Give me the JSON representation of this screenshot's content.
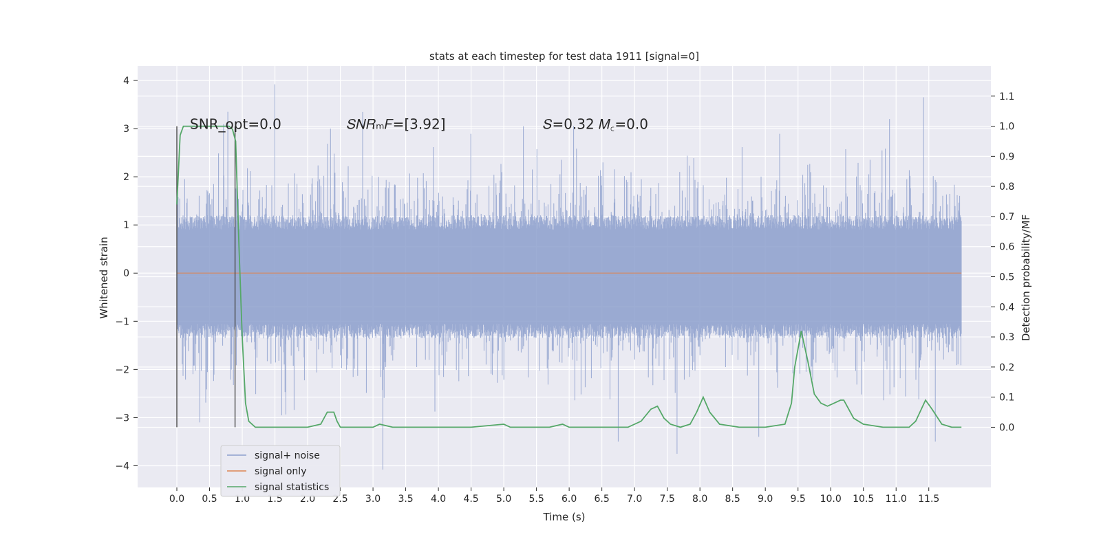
{
  "chart_data": {
    "type": "line",
    "title": "stats at each timestep for test data 1911 [signal=0]",
    "xlabel": "Time (s)",
    "ylabel_left": "Whitened strain",
    "ylabel_right": "Detection probability/MF",
    "xlim": [
      -0.6,
      12.45
    ],
    "ylim_left": [
      -4.45,
      4.3
    ],
    "ylim_right": [
      -0.2,
      1.2
    ],
    "grid": true,
    "legend_position": "lower-left",
    "x_ticks": [
      "0.0",
      "0.5",
      "1.0",
      "1.5",
      "2.0",
      "2.5",
      "3.0",
      "3.5",
      "4.0",
      "4.5",
      "5.0",
      "5.5",
      "6.0",
      "6.5",
      "7.0",
      "7.5",
      "8.0",
      "8.5",
      "9.0",
      "9.5",
      "10.0",
      "10.5",
      "11.0",
      "11.5"
    ],
    "x_tick_values": [
      0,
      0.5,
      1,
      1.5,
      2,
      2.5,
      3,
      3.5,
      4,
      4.5,
      5,
      5.5,
      6,
      6.5,
      7,
      7.5,
      8,
      8.5,
      9,
      9.5,
      10,
      10.5,
      11,
      11.5
    ],
    "y_left_ticks": [
      "−4",
      "−3",
      "−2",
      "−1",
      "0",
      "1",
      "2",
      "3",
      "4"
    ],
    "y_left_tick_values": [
      -4,
      -3,
      -2,
      -1,
      0,
      1,
      2,
      3,
      4
    ],
    "y_right_ticks": [
      "0.0",
      "0.1",
      "0.2",
      "0.3",
      "0.4",
      "0.5",
      "0.6",
      "0.7",
      "0.8",
      "0.9",
      "1.0",
      "1.1"
    ],
    "y_right_tick_values": [
      0,
      0.1,
      0.2,
      0.3,
      0.4,
      0.5,
      0.6,
      0.7,
      0.8,
      0.9,
      1.0,
      1.1
    ],
    "annotations": [
      {
        "name": "snr-opt",
        "text": "SNR_opt=0.0",
        "x": 0.2,
        "y_right": 1.0
      },
      {
        "name": "snr-mf",
        "text": "𝑆𝑁𝑅ₘ𝐹=[3.92]",
        "x": 2.6,
        "y_right": 1.0
      },
      {
        "name": "s-mc",
        "text": "𝑆=0.32   𝑀꜀=0.0",
        "x": 5.6,
        "y_right": 1.0
      }
    ],
    "vlines": [
      {
        "x": 0.0,
        "y_range": [
          -3.2,
          3.05
        ]
      },
      {
        "x": 0.89,
        "y_range": [
          -3.2,
          3.05
        ]
      }
    ],
    "series": [
      {
        "name": "signal+ noise",
        "color": "#8c9fcd",
        "axis": "left",
        "kind": "noise",
        "x_range": [
          0,
          12.0
        ],
        "typical_range": [
          -1.35,
          1.2
        ],
        "extremes": [
          {
            "x": 1.5,
            "y": 3.92
          },
          {
            "x": 3.15,
            "y": -4.08
          },
          {
            "x": 11.42,
            "y": 3.65
          },
          {
            "x": 0.78,
            "y": 3.35
          },
          {
            "x": 10.9,
            "y": 3.2
          },
          {
            "x": 6.75,
            "y": -3.5
          },
          {
            "x": 11.6,
            "y": -3.5
          },
          {
            "x": 7.65,
            "y": -3.75
          },
          {
            "x": 2.35,
            "y": 3.0
          },
          {
            "x": 0.35,
            "y": -3.1
          },
          {
            "x": 5.3,
            "y": 3.05
          },
          {
            "x": 8.9,
            "y": -3.4
          }
        ]
      },
      {
        "name": "signal only",
        "color": "#dd8452",
        "axis": "left",
        "x": [
          0,
          12.0
        ],
        "y": [
          0,
          0
        ]
      },
      {
        "name": "signal statistics",
        "color": "#55a868",
        "axis": "right",
        "x": [
          0,
          0.05,
          0.1,
          0.15,
          0.2,
          0.3,
          0.5,
          0.7,
          0.8,
          0.85,
          0.9,
          0.95,
          1.0,
          1.05,
          1.1,
          1.2,
          1.5,
          2.0,
          2.2,
          2.3,
          2.4,
          2.45,
          2.5,
          2.6,
          2.8,
          3.0,
          3.1,
          3.3,
          3.6,
          4.0,
          4.5,
          5.0,
          5.1,
          5.3,
          5.7,
          5.9,
          6.0,
          6.1,
          6.5,
          6.9,
          7.1,
          7.25,
          7.35,
          7.45,
          7.55,
          7.7,
          7.85,
          7.95,
          8.05,
          8.15,
          8.3,
          8.6,
          9.0,
          9.3,
          9.4,
          9.45,
          9.55,
          9.65,
          9.75,
          9.85,
          9.95,
          10.05,
          10.15,
          10.2,
          10.25,
          10.35,
          10.5,
          10.8,
          11.0,
          11.2,
          11.3,
          11.45,
          11.55,
          11.7,
          11.85,
          12.0
        ],
        "y": [
          0.74,
          0.97,
          1.0,
          1.0,
          1.0,
          1.0,
          1.0,
          1.0,
          1.0,
          0.99,
          0.95,
          0.6,
          0.3,
          0.08,
          0.02,
          0.0,
          0.0,
          0.0,
          0.01,
          0.05,
          0.05,
          0.02,
          0.0,
          0.0,
          0.0,
          0.0,
          0.01,
          0.0,
          0.0,
          0.0,
          0.0,
          0.01,
          0.0,
          0.0,
          0.0,
          0.01,
          0.0,
          0.0,
          0.0,
          0.0,
          0.02,
          0.06,
          0.07,
          0.03,
          0.01,
          0.0,
          0.01,
          0.05,
          0.1,
          0.05,
          0.01,
          0.0,
          0.0,
          0.01,
          0.08,
          0.2,
          0.32,
          0.22,
          0.11,
          0.08,
          0.07,
          0.08,
          0.09,
          0.09,
          0.07,
          0.03,
          0.01,
          0.0,
          0.0,
          0.0,
          0.02,
          0.09,
          0.06,
          0.01,
          0.0,
          0.0
        ]
      }
    ]
  }
}
